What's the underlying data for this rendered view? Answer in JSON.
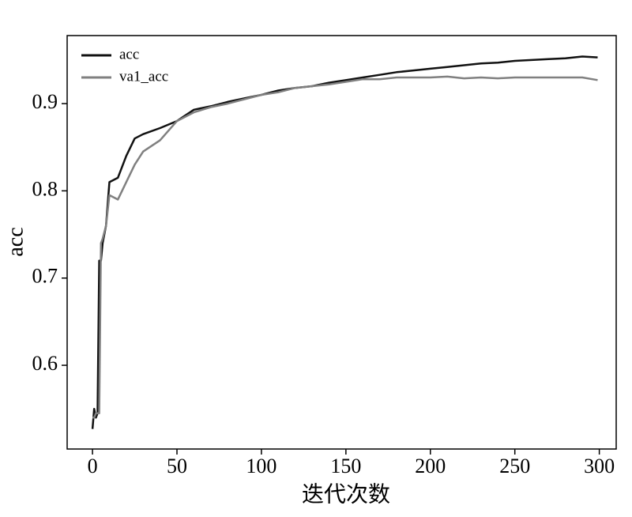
{
  "chart_data": {
    "type": "line",
    "xlabel": "迭代次数",
    "ylabel": "acc",
    "x": [
      0,
      1,
      2,
      3,
      4,
      5,
      6,
      8,
      10,
      15,
      20,
      25,
      30,
      40,
      50,
      60,
      70,
      80,
      90,
      100,
      110,
      120,
      130,
      140,
      150,
      160,
      170,
      180,
      190,
      200,
      210,
      220,
      230,
      240,
      250,
      260,
      270,
      280,
      290,
      299
    ],
    "series": [
      {
        "name": "acc",
        "color": "#111111",
        "values": [
          0.527,
          0.55,
          0.54,
          0.545,
          0.72,
          0.72,
          0.74,
          0.76,
          0.81,
          0.815,
          0.84,
          0.86,
          0.865,
          0.872,
          0.88,
          0.893,
          0.897,
          0.902,
          0.906,
          0.91,
          0.915,
          0.918,
          0.92,
          0.924,
          0.927,
          0.93,
          0.933,
          0.936,
          0.938,
          0.94,
          0.942,
          0.944,
          0.946,
          0.947,
          0.949,
          0.95,
          0.951,
          0.952,
          0.954,
          0.953
        ]
      },
      {
        "name": "va1_acc",
        "color": "#808080",
        "values": [
          0.54,
          0.54,
          0.545,
          0.545,
          0.545,
          0.74,
          0.745,
          0.76,
          0.795,
          0.79,
          0.81,
          0.83,
          0.845,
          0.858,
          0.88,
          0.89,
          0.896,
          0.9,
          0.905,
          0.91,
          0.913,
          0.918,
          0.92,
          0.922,
          0.925,
          0.928,
          0.928,
          0.93,
          0.93,
          0.93,
          0.931,
          0.929,
          0.93,
          0.929,
          0.93,
          0.93,
          0.93,
          0.93,
          0.93,
          0.927
        ]
      }
    ],
    "xlim": [
      -15,
      310
    ],
    "ylim": [
      0.504,
      0.978
    ],
    "xticks": [
      0,
      50,
      100,
      150,
      200,
      250,
      300
    ],
    "yticks": [
      0.6,
      0.7,
      0.8,
      0.9
    ],
    "legend": "upper left"
  }
}
